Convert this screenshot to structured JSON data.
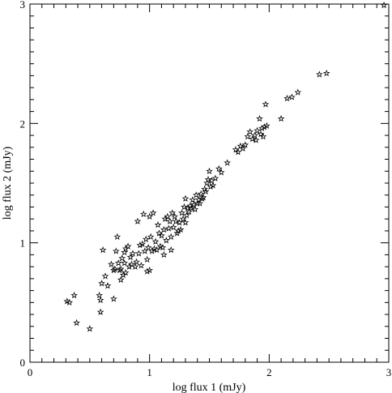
{
  "chart_data": {
    "type": "scatter",
    "title": "",
    "xlabel": "log flux 1 (mJy)",
    "ylabel": "log flux 2 (mJy)",
    "xlim": [
      0,
      3
    ],
    "ylim": [
      0,
      3
    ],
    "x_major_ticks": [
      0,
      1,
      2,
      3
    ],
    "y_major_ticks": [
      0,
      1,
      2,
      3
    ],
    "x_tick_labels": [
      "0",
      "1",
      "2",
      "3"
    ],
    "y_tick_labels": [
      "0",
      "1",
      "2",
      "3"
    ],
    "minor_tick_step": 0.1,
    "grid": false,
    "legend": "none",
    "marker": "star",
    "colors": {
      "axes": "#000000",
      "marker": "#000000",
      "background": "#ffffff"
    },
    "series": [
      {
        "points": [
          [
            0.31,
            0.51
          ],
          [
            0.33,
            0.5
          ],
          [
            0.37,
            0.56
          ],
          [
            0.39,
            0.33
          ],
          [
            0.5,
            0.28
          ],
          [
            0.58,
            0.56
          ],
          [
            0.59,
            0.52
          ],
          [
            0.59,
            0.42
          ],
          [
            0.6,
            0.66
          ],
          [
            0.61,
            0.94
          ],
          [
            0.63,
            0.72
          ],
          [
            0.65,
            0.64
          ],
          [
            0.68,
            0.82
          ],
          [
            0.7,
            0.77
          ],
          [
            0.7,
            0.53
          ],
          [
            0.71,
            0.78
          ],
          [
            0.72,
            0.93
          ],
          [
            0.73,
            1.05
          ],
          [
            0.74,
            0.83
          ],
          [
            0.75,
            0.77
          ],
          [
            0.76,
            0.78
          ],
          [
            0.76,
            0.69
          ],
          [
            0.77,
            0.87
          ],
          [
            0.78,
            0.73
          ],
          [
            0.79,
            0.92
          ],
          [
            0.79,
            0.83
          ],
          [
            0.8,
            0.95
          ],
          [
            0.8,
            0.75
          ],
          [
            0.82,
            0.97
          ],
          [
            0.83,
            0.8
          ],
          [
            0.84,
            0.88
          ],
          [
            0.85,
            0.82
          ],
          [
            0.86,
            0.91
          ],
          [
            0.88,
            0.8
          ],
          [
            0.89,
            0.84
          ],
          [
            0.9,
            1.18
          ],
          [
            0.91,
            0.91
          ],
          [
            0.92,
            0.98
          ],
          [
            0.93,
            0.81
          ],
          [
            0.94,
            0.99
          ],
          [
            0.95,
            1.24
          ],
          [
            0.96,
            0.93
          ],
          [
            0.97,
            1.03
          ],
          [
            0.98,
            0.86
          ],
          [
            0.98,
            0.76
          ],
          [
            0.99,
            0.96
          ],
          [
            1.0,
            1.22
          ],
          [
            1.0,
            0.77
          ],
          [
            1.01,
            1.05
          ],
          [
            1.02,
            0.93
          ],
          [
            1.03,
            1.25
          ],
          [
            1.04,
            0.95
          ],
          [
            1.05,
            1.01
          ],
          [
            1.06,
            0.94
          ],
          [
            1.07,
            1.15
          ],
          [
            1.08,
            1.08
          ],
          [
            1.09,
            0.97
          ],
          [
            1.1,
            1.06
          ],
          [
            1.11,
            0.96
          ],
          [
            1.12,
            1.11
          ],
          [
            1.12,
            0.9
          ],
          [
            1.13,
            1.2
          ],
          [
            1.14,
            1.02
          ],
          [
            1.15,
            1.22
          ],
          [
            1.16,
            1.12
          ],
          [
            1.17,
            1.18
          ],
          [
            1.18,
            1.05
          ],
          [
            1.18,
            0.94
          ],
          [
            1.19,
            1.25
          ],
          [
            1.2,
            1.13
          ],
          [
            1.21,
            1.22
          ],
          [
            1.22,
            1.18
          ],
          [
            1.23,
            1.08
          ],
          [
            1.24,
            1.1
          ],
          [
            1.25,
            1.17
          ],
          [
            1.26,
            1.11
          ],
          [
            1.27,
            1.25
          ],
          [
            1.28,
            1.2
          ],
          [
            1.29,
            1.3
          ],
          [
            1.3,
            1.17
          ],
          [
            1.3,
            1.37
          ],
          [
            1.31,
            1.23
          ],
          [
            1.32,
            1.29
          ],
          [
            1.33,
            1.26
          ],
          [
            1.34,
            1.31
          ],
          [
            1.35,
            1.29
          ],
          [
            1.36,
            1.36
          ],
          [
            1.37,
            1.32
          ],
          [
            1.38,
            1.28
          ],
          [
            1.39,
            1.4
          ],
          [
            1.4,
            1.33
          ],
          [
            1.41,
            1.36
          ],
          [
            1.42,
            1.33
          ],
          [
            1.43,
            1.41
          ],
          [
            1.44,
            1.37
          ],
          [
            1.45,
            1.38
          ],
          [
            1.46,
            1.45
          ],
          [
            1.47,
            1.43
          ],
          [
            1.48,
            1.5
          ],
          [
            1.49,
            1.53
          ],
          [
            1.5,
            1.6
          ],
          [
            1.51,
            1.47
          ],
          [
            1.52,
            1.52
          ],
          [
            1.53,
            1.48
          ],
          [
            1.55,
            1.54
          ],
          [
            1.58,
            1.62
          ],
          [
            1.6,
            1.59
          ],
          [
            1.65,
            1.67
          ],
          [
            1.72,
            1.78
          ],
          [
            1.74,
            1.76
          ],
          [
            1.76,
            1.81
          ],
          [
            1.78,
            1.79
          ],
          [
            1.8,
            1.82
          ],
          [
            1.82,
            1.89
          ],
          [
            1.84,
            1.93
          ],
          [
            1.86,
            1.87
          ],
          [
            1.88,
            1.9
          ],
          [
            1.89,
            1.86
          ],
          [
            1.9,
            1.94
          ],
          [
            1.92,
            2.04
          ],
          [
            1.93,
            1.91
          ],
          [
            1.94,
            1.96
          ],
          [
            1.95,
            1.89
          ],
          [
            1.96,
            1.97
          ],
          [
            1.97,
            2.16
          ],
          [
            1.98,
            1.98
          ],
          [
            2.1,
            2.04
          ],
          [
            2.15,
            2.21
          ],
          [
            2.19,
            2.22
          ],
          [
            2.24,
            2.26
          ],
          [
            2.42,
            2.41
          ],
          [
            2.48,
            2.42
          ],
          [
            2.96,
            2.99
          ]
        ]
      }
    ]
  }
}
